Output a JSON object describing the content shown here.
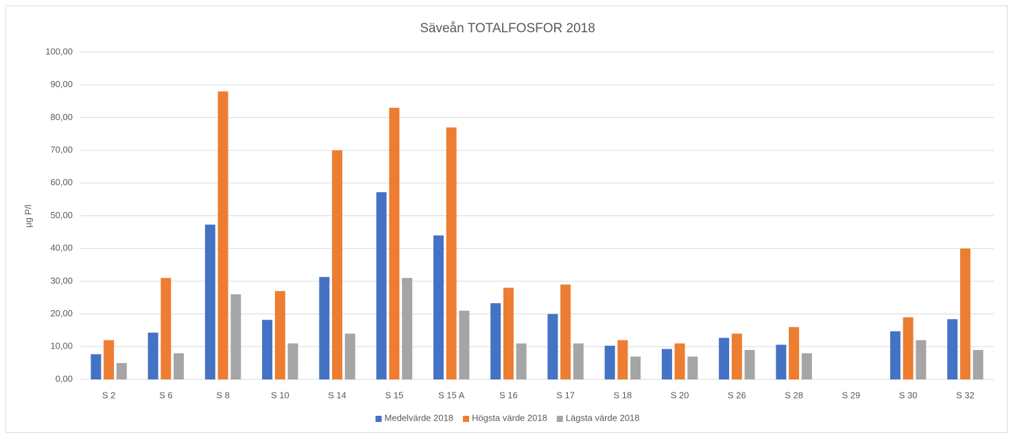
{
  "chart_data": {
    "type": "bar",
    "title": "Säveån TOTALFOSFOR 2018",
    "y_label": "µg P/l",
    "categories": [
      "S 2",
      "S 6",
      "S 8",
      "S 10",
      "S 14",
      "S 15",
      "S 15 A",
      "S 16",
      "S 17",
      "S 18",
      "S 20",
      "S 26",
      "S 28",
      "S 29",
      "S 30",
      "S 32"
    ],
    "series": [
      {
        "name": "Medelvärde 2018",
        "color": "#4472c4",
        "values": [
          7.7,
          14.3,
          47.3,
          18.2,
          31.3,
          57.2,
          44,
          23.3,
          20,
          10.3,
          9.3,
          12.7,
          10.6,
          null,
          14.7,
          18.4
        ]
      },
      {
        "name": "Högsta värde 2018",
        "color": "#ed7d31",
        "values": [
          12,
          31,
          88,
          27,
          70,
          83,
          77,
          28,
          29,
          12,
          11,
          14,
          16,
          null,
          19,
          40
        ]
      },
      {
        "name": "Lägsta värde 2018",
        "color": "#a5a5a5",
        "values": [
          5,
          8,
          26,
          11,
          14,
          31,
          21,
          11,
          11,
          7,
          7,
          9,
          8,
          null,
          12,
          9
        ]
      }
    ],
    "ylim": [
      0,
      100
    ],
    "yticks": [
      {
        "value": 0,
        "label": "0,00"
      },
      {
        "value": 10,
        "label": "10,00"
      },
      {
        "value": 20,
        "label": "20,00"
      },
      {
        "value": 30,
        "label": "30,00"
      },
      {
        "value": 40,
        "label": "40,00"
      },
      {
        "value": 50,
        "label": "50,00"
      },
      {
        "value": 60,
        "label": "60,00"
      },
      {
        "value": 70,
        "label": "70,00"
      },
      {
        "value": 80,
        "label": "80,00"
      },
      {
        "value": 90,
        "label": "90,00"
      },
      {
        "value": 100,
        "label": "100,00"
      }
    ],
    "grid": true,
    "legend": "bottom"
  }
}
